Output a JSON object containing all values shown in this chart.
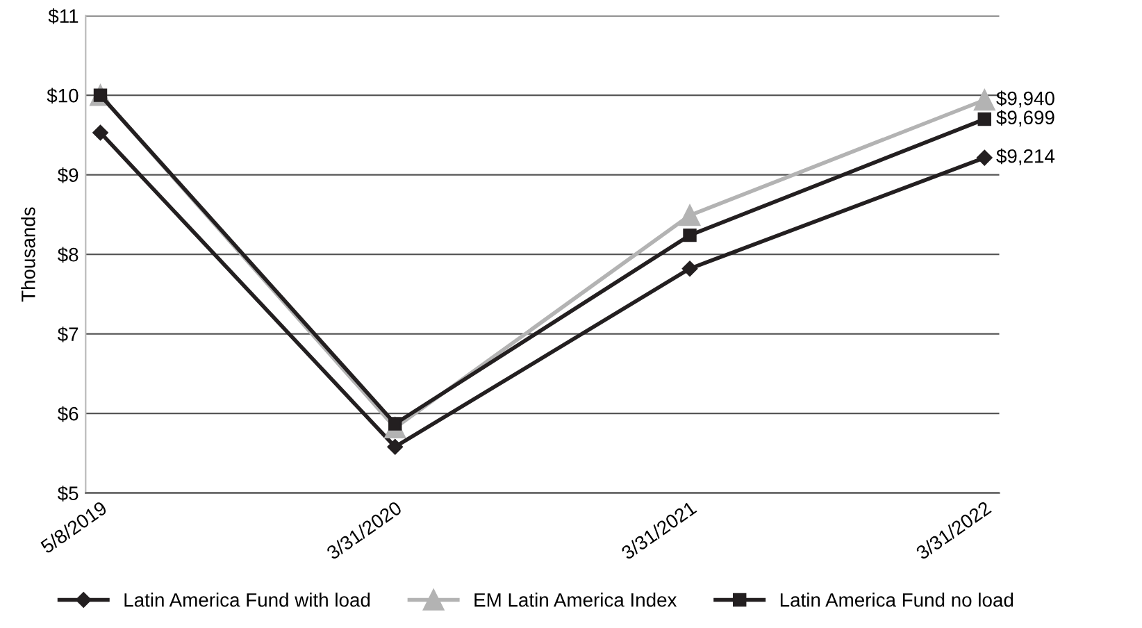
{
  "chart_data": {
    "type": "line",
    "ylabel": "Thousands",
    "categories": [
      "5/8/2019",
      "3/31/2020",
      "3/31/2021",
      "3/31/2022"
    ],
    "series": [
      {
        "name": "Latin America Fund with load",
        "color": "#231f20",
        "marker": "diamond",
        "values": [
          9.53,
          5.58,
          7.82,
          9.214
        ]
      },
      {
        "name": "EM Latin America Index",
        "color": "#b3b3b3",
        "marker": "triangle",
        "values": [
          10.0,
          5.82,
          8.49,
          9.94
        ]
      },
      {
        "name": "Latin America Fund no load",
        "color": "#231f20",
        "marker": "square",
        "values": [
          10.0,
          5.87,
          8.24,
          9.699
        ]
      }
    ],
    "annotations": [
      {
        "text": "$9,940",
        "x": "3/31/2022",
        "y": 9.94
      },
      {
        "text": "$9,699",
        "x": "3/31/2022",
        "y": 9.699
      },
      {
        "text": "$9,214",
        "x": "3/31/2022",
        "y": 9.214
      }
    ],
    "ylim": [
      5,
      11
    ],
    "yticks": [
      {
        "value": 5,
        "label": "$5"
      },
      {
        "value": 6,
        "label": "$6"
      },
      {
        "value": 7,
        "label": "$7"
      },
      {
        "value": 8,
        "label": "$8"
      },
      {
        "value": 9,
        "label": "$9"
      },
      {
        "value": 10,
        "label": "$10"
      },
      {
        "value": 11,
        "label": "$11"
      }
    ],
    "grid": "y",
    "legend": "bottom",
    "line_style": "solid"
  }
}
